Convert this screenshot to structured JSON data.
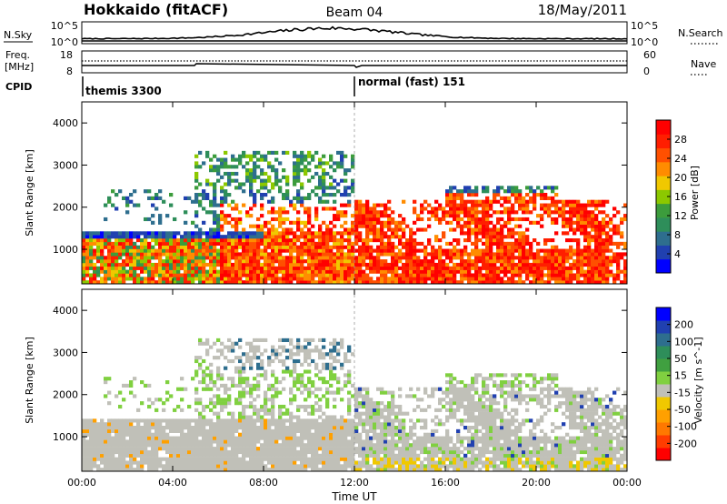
{
  "header": {
    "station": "Hokkaido (fitACF)",
    "beam": "Beam 04",
    "date": "18/May/2011"
  },
  "panels": {
    "nsky_label": "N.Sky",
    "nsearch_label": "N.Search",
    "freq_label": "Freq.",
    "freq_unit": "[MHz]",
    "nave_label": "Nave",
    "cpid_label": "CPID",
    "nsky_ticks": [
      "10^5",
      "10^0"
    ],
    "nsearch_ticks": [
      "10^5",
      "10^0"
    ],
    "freq_ticks": [
      "18",
      "8"
    ],
    "nave_ticks": [
      "60",
      "0"
    ]
  },
  "cpid": [
    {
      "name": "themis 3300",
      "start_hour": 0
    },
    {
      "name": "normal (fast) 151",
      "start_hour": 12
    }
  ],
  "colors": {
    "background": "#ffffff",
    "ground_scatter": "#c0c0b8"
  },
  "chart_data": [
    {
      "type": "heatmap",
      "title": "Power",
      "xlabel": "",
      "ylabel": "Slant Range [km]",
      "xlim_hours": [
        0,
        24
      ],
      "ylim_km": [
        180,
        4500
      ],
      "x_ticks": [
        "00:00",
        "04:00",
        "08:00",
        "12:00",
        "16:00",
        "20:00",
        "00:00"
      ],
      "y_ticks": [
        1000,
        2000,
        3000,
        4000
      ],
      "colorbar": {
        "label": "Power [dB]",
        "ticks": [
          "28",
          "24",
          "20",
          "16",
          "12",
          "8",
          "4"
        ],
        "range": [
          0,
          30
        ],
        "colors": [
          "#0000ff",
          "#2040b0",
          "#2e6e8e",
          "#2e8e5a",
          "#3c9c3c",
          "#8cc800",
          "#f0c800",
          "#ff8c00",
          "#ff5000",
          "#ff1e00",
          "#ff0000"
        ]
      }
    },
    {
      "type": "heatmap",
      "title": "Velocity",
      "xlabel": "Time UT",
      "ylabel": "Slant Range [km]",
      "xlim_hours": [
        0,
        24
      ],
      "ylim_km": [
        180,
        4500
      ],
      "x_ticks": [
        "00:00",
        "04:00",
        "08:00",
        "12:00",
        "16:00",
        "20:00",
        "00:00"
      ],
      "y_ticks": [
        1000,
        2000,
        3000,
        4000
      ],
      "colorbar": {
        "label": "Velocity [m s^-1]",
        "ticks": [
          "200",
          "100",
          "50",
          "15",
          "-15",
          "-50",
          "-100",
          "-200"
        ],
        "range": [
          -250,
          250
        ],
        "colors": [
          "#ff0000",
          "#ff3c00",
          "#ff7800",
          "#ffa000",
          "#f0c800",
          "#c0c0b8",
          "#80d040",
          "#40a040",
          "#2e8e5a",
          "#2e6e8e",
          "#2040b0",
          "#0000ff"
        ]
      }
    }
  ]
}
